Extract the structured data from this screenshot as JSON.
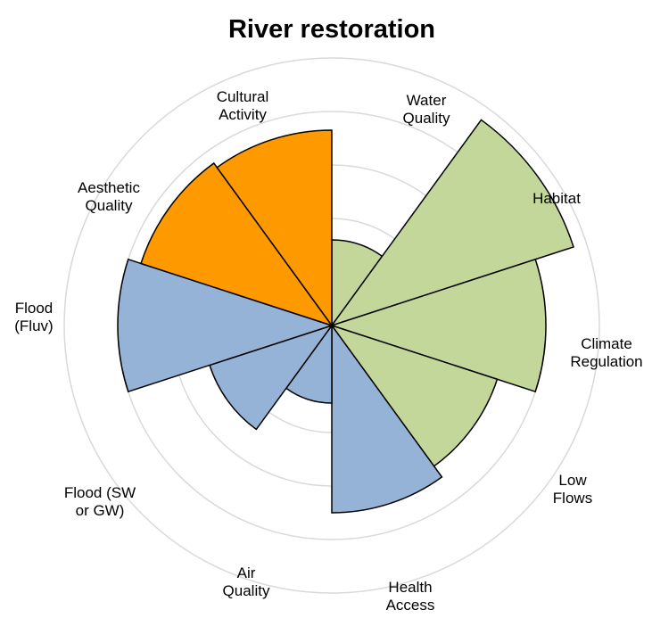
{
  "chart_data": {
    "type": "polar_area",
    "title": "River restoration",
    "categories": [
      "Water\nQuality",
      "Habitat",
      "Climate\nRegulation",
      "Low\nFlows",
      "Health\nAccess",
      "Air\nQuality",
      "Flood (SW\nor GW)",
      "Flood\n(Fluv)",
      "Aesthetic\nQuality",
      "Cultural\nActivity"
    ],
    "values": [
      3.2,
      9.5,
      8,
      6.5,
      7,
      2.9,
      4.8,
      8,
      7.5,
      7.3
    ],
    "colors": [
      "#c4d79b",
      "#c4d79b",
      "#c4d79b",
      "#c4d79b",
      "#95b3d7",
      "#95b3d7",
      "#95b3d7",
      "#95b3d7",
      "#ff9900",
      "#ff9900"
    ],
    "ylim": [
      0,
      10
    ],
    "yticks": [
      2,
      4,
      6,
      8,
      10
    ],
    "grid": true
  }
}
